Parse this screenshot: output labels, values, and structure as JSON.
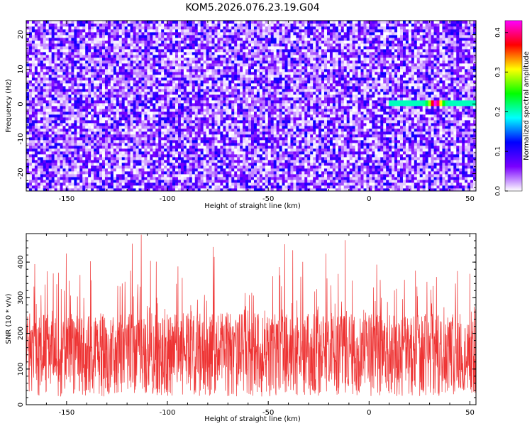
{
  "title": "KOM5.2026.076.23.19.G04",
  "chart_data": [
    {
      "type": "heatmap",
      "title": "KOM5.2026.076.23.19.G04",
      "xlabel": "Height of straight line (km)",
      "ylabel": "Frequency (Hz)",
      "xlim": [
        -170,
        53
      ],
      "ylim": [
        -25,
        24
      ],
      "xticks": [
        -150,
        -100,
        -50,
        0,
        50
      ],
      "yticks": [
        -20,
        -10,
        0,
        10,
        20
      ],
      "xtick_labels": [
        "-150",
        "-100",
        "-50",
        "0",
        "50"
      ],
      "ytick_labels": [
        "-20",
        "-10",
        "0",
        "10",
        "20"
      ],
      "colorbar": {
        "label": "Normalized spectral amplitude",
        "range": [
          0.0,
          0.43
        ],
        "ticks": [
          0.0,
          0.1,
          0.2,
          0.3,
          0.4
        ],
        "tick_labels": [
          "0.0",
          "0.1",
          "0.2",
          "0.3",
          "0.4"
        ],
        "colors": [
          "#ffffff",
          "#7a00ff",
          "#0000ff",
          "#00ffff",
          "#00ff00",
          "#ffff00",
          "#ff0000",
          "#ff00ff"
        ]
      },
      "features": [
        {
          "name": "Strong horizontal signal",
          "x_range": [
            10,
            53
          ],
          "frequency": 0,
          "amplitude": 0.2,
          "peak_x": 33,
          "peak_amplitude": 0.43
        }
      ],
      "background_amplitude": [
        0.0,
        0.12
      ]
    },
    {
      "type": "line",
      "xlabel": "Height of straight line (km)",
      "ylabel": "SNR (10 * v/v)",
      "xlim": [
        -170,
        53
      ],
      "ylim": [
        0,
        480
      ],
      "xticks": [
        -150,
        -100,
        -50,
        0,
        50
      ],
      "yticks": [
        0,
        100,
        200,
        300,
        400
      ],
      "xtick_labels": [
        "-150",
        "-100",
        "-50",
        "0",
        "50"
      ],
      "ytick_labels": [
        "0",
        "100",
        "200",
        "300",
        "400"
      ],
      "series": [
        {
          "name": "SNR",
          "color": "#ee3333",
          "mean": 140,
          "min": 10,
          "max": 480,
          "typical_peak": 330
        }
      ]
    }
  ]
}
